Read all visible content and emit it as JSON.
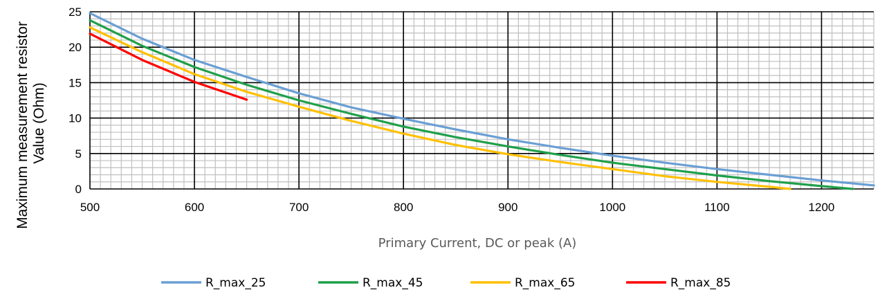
{
  "chart_data": {
    "type": "line",
    "title": "",
    "xlabel": "Primary Current, DC or peak (A)",
    "ylabel": [
      "Maximum measurement  resistor",
      "Value (Ohm)"
    ],
    "xlim": [
      500,
      1250
    ],
    "ylim": [
      0,
      25
    ],
    "x_ticks": [
      500,
      600,
      700,
      800,
      900,
      1000,
      1100,
      1200
    ],
    "y_ticks": [
      0,
      5,
      10,
      15,
      20,
      25
    ],
    "x_tick_labels": [
      "500",
      "600",
      "700",
      "800",
      "900",
      "1000",
      "1100",
      "1200"
    ],
    "y_tick_labels": [
      "0",
      "5",
      "10",
      "15",
      "20",
      "25"
    ],
    "grid": true,
    "legend_position": "bottom",
    "series": [
      {
        "name": "R_max_25",
        "color": "#6a9fd4",
        "x": [
          500,
          550,
          600,
          650,
          700,
          750,
          800,
          850,
          900,
          950,
          1000,
          1050,
          1100,
          1150,
          1200,
          1250
        ],
        "y": [
          24.8,
          21.2,
          18.2,
          15.8,
          13.5,
          11.5,
          9.9,
          8.4,
          7.0,
          5.8,
          4.7,
          3.7,
          2.8,
          2.0,
          1.2,
          0.5
        ]
      },
      {
        "name": "R_max_45",
        "color": "#1fa04a",
        "x": [
          500,
          550,
          600,
          650,
          700,
          750,
          800,
          850,
          900,
          950,
          1000,
          1050,
          1100,
          1150,
          1200,
          1230
        ],
        "y": [
          23.8,
          20.2,
          17.2,
          14.7,
          12.5,
          10.6,
          8.8,
          7.3,
          6.0,
          4.8,
          3.7,
          2.8,
          1.9,
          1.1,
          0.4,
          0.0
        ]
      },
      {
        "name": "R_max_65",
        "color": "#ffc000",
        "x": [
          500,
          550,
          600,
          650,
          700,
          750,
          800,
          850,
          900,
          950,
          1000,
          1050,
          1100,
          1150,
          1170
        ],
        "y": [
          22.8,
          19.3,
          16.2,
          13.7,
          11.6,
          9.6,
          7.8,
          6.2,
          4.9,
          3.8,
          2.8,
          1.8,
          1.0,
          0.3,
          0.0
        ]
      },
      {
        "name": "R_max_85",
        "color": "#ff0000",
        "x": [
          500,
          550,
          600,
          650
        ],
        "y": [
          21.9,
          18.2,
          15.1,
          12.6
        ]
      }
    ]
  }
}
